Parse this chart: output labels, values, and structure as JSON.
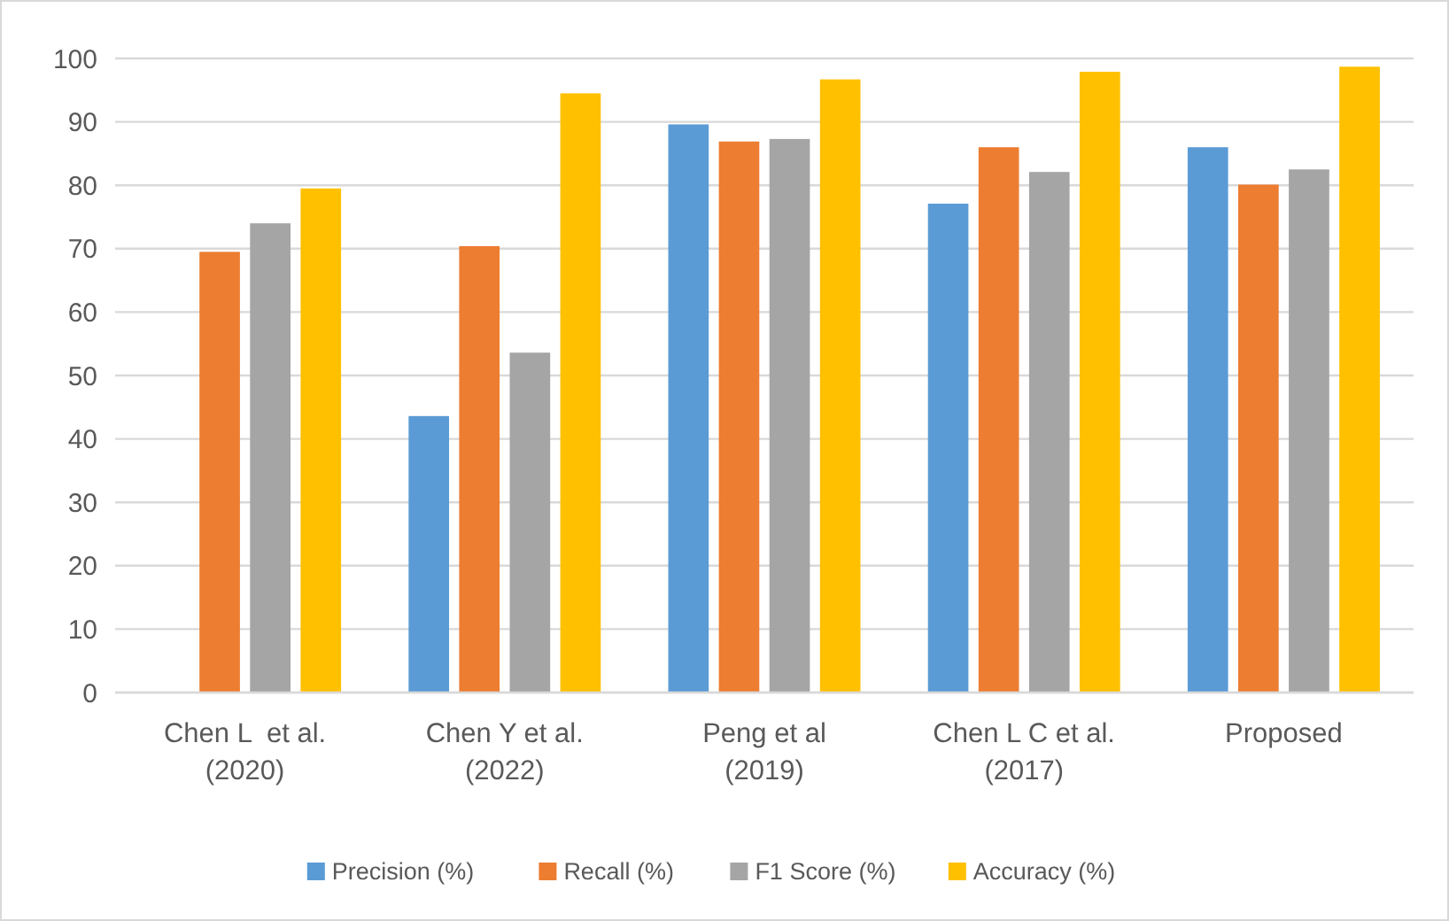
{
  "chart_data": {
    "type": "bar",
    "categories": [
      "Chen L  et al.\n(2020)",
      "Chen Y et al.\n(2022)",
      "Peng et al\n(2019)",
      "Chen L C et al.\n(2017)",
      "Proposed"
    ],
    "series": [
      {
        "name": "Precision (%)",
        "color": "#5b9bd5",
        "values": [
          null,
          43.6,
          89.6,
          77.1,
          86.0
        ]
      },
      {
        "name": "Recall (%)",
        "color": "#ed7d31",
        "values": [
          69.5,
          70.4,
          86.9,
          86.0,
          80.1
        ]
      },
      {
        "name": "F1 Score (%)",
        "color": "#a5a5a5",
        "values": [
          74.0,
          53.6,
          87.3,
          82.1,
          82.5
        ]
      },
      {
        "name": "Accuracy (%)",
        "color": "#ffc000",
        "values": [
          79.5,
          94.5,
          96.7,
          97.9,
          98.7
        ]
      }
    ],
    "ylim": [
      0,
      100
    ],
    "yticks": [
      0,
      10,
      20,
      30,
      40,
      50,
      60,
      70,
      80,
      90,
      100
    ],
    "grid": "y",
    "legend": "bottom"
  }
}
